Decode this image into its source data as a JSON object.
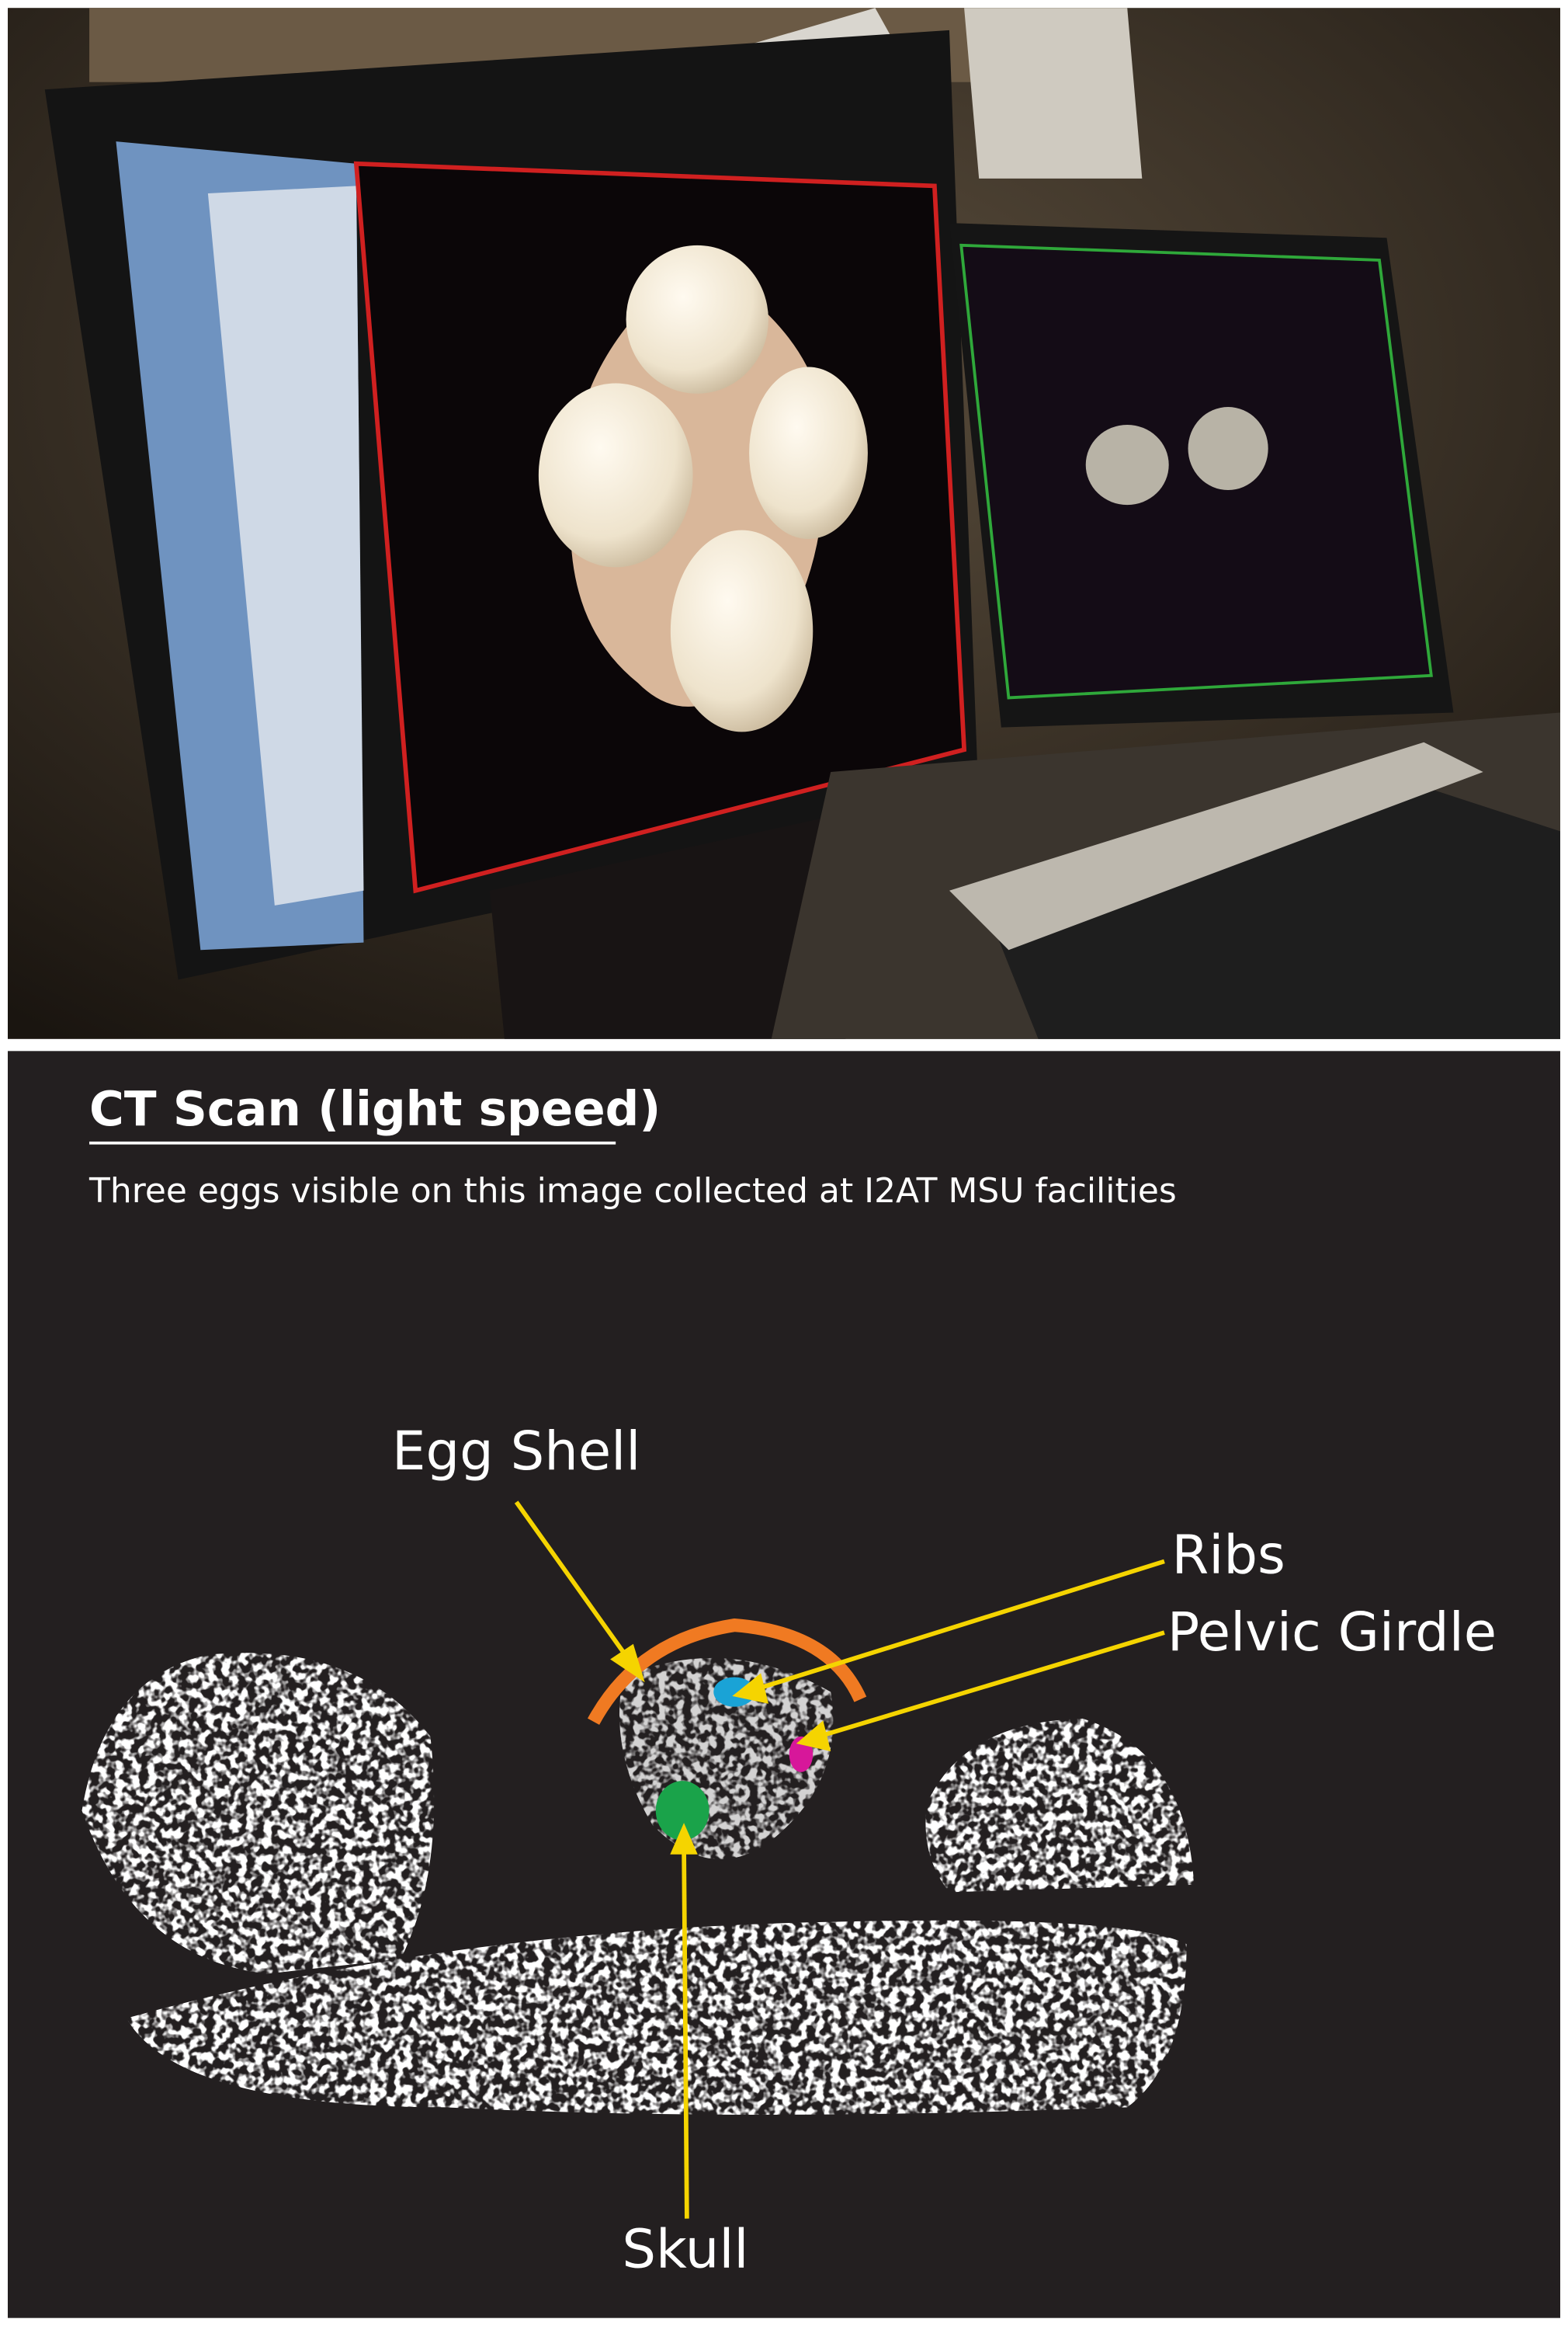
{
  "figure": {
    "title": "CT Scan (light speed)",
    "subtitle": "Three eggs visible on this image collected at I2AT MSU facilities",
    "labels": [
      "Egg Shell",
      "Ribs",
      "Pelvic Girdle",
      "Skull"
    ]
  }
}
